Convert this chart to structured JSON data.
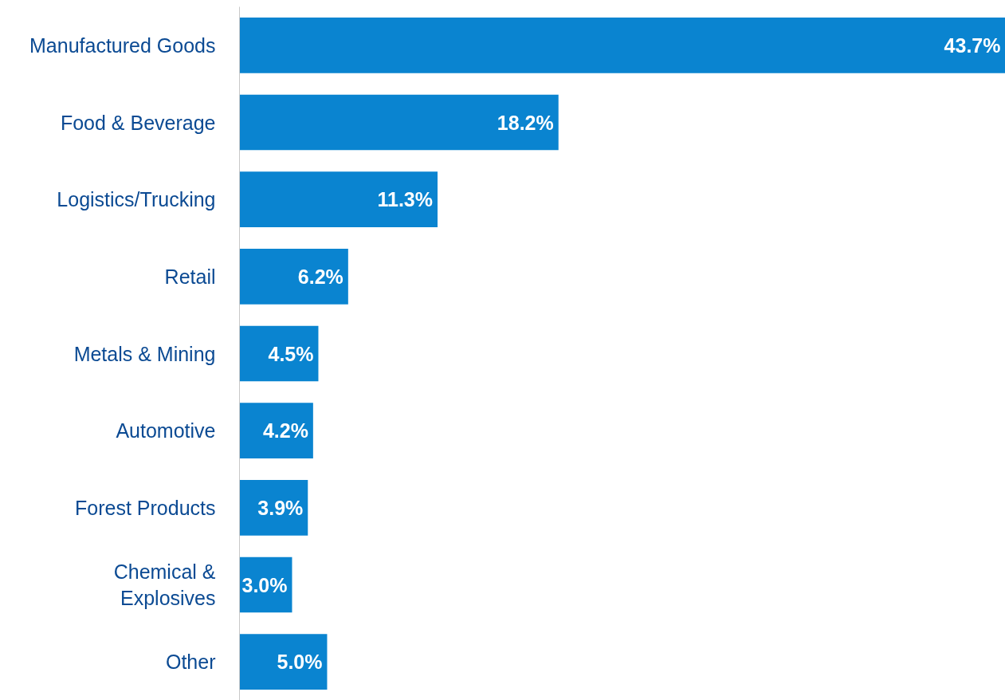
{
  "chart_data": {
    "type": "bar",
    "orientation": "horizontal",
    "categories": [
      "Manufactured Goods",
      "Food & Beverage",
      "Logistics/Trucking",
      "Retail",
      "Metals & Mining",
      "Automotive",
      "Forest Products",
      "Chemical &\nExplosives",
      "Other"
    ],
    "values": [
      43.7,
      18.2,
      11.3,
      6.2,
      4.5,
      4.2,
      3.9,
      3.0,
      5.0
    ],
    "value_labels": [
      "43.7%",
      "18.2%",
      "11.3%",
      "6.2%",
      "4.5%",
      "4.2%",
      "3.9%",
      "3.0%",
      "5.0%"
    ],
    "color": "#0a84d0",
    "grid": false
  }
}
